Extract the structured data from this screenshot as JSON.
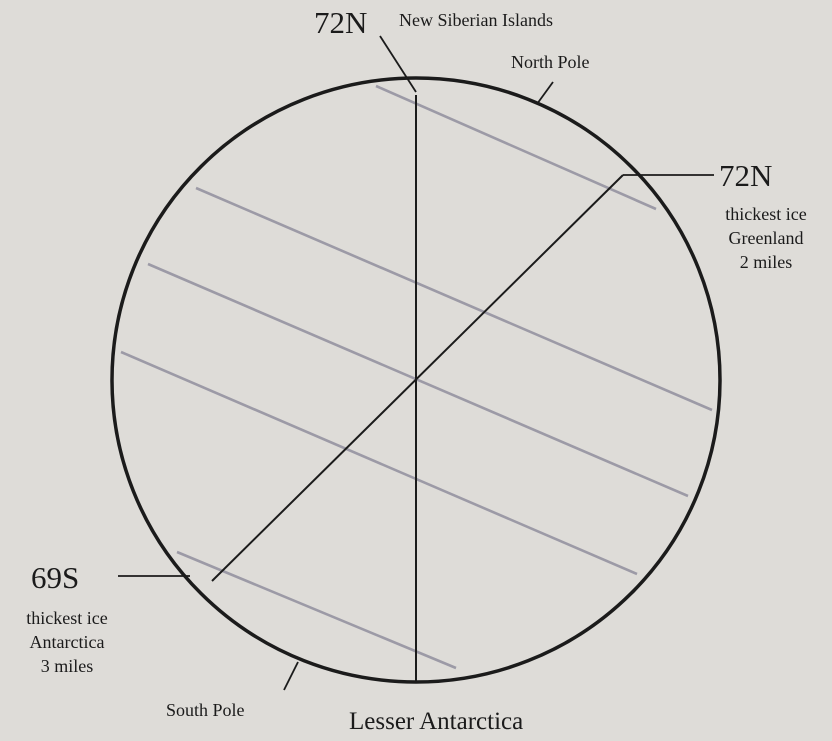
{
  "labels": {
    "top_lat": "72N",
    "top_place": "New Siberian Islands",
    "north_pole": "North Pole",
    "right_lat": "72N",
    "right_note": [
      "thickest ice",
      "Greenland",
      "2 miles"
    ],
    "left_lat": "69S",
    "left_note": [
      "thickest ice",
      "Antarctica",
      "3 miles"
    ],
    "south_pole": "South Pole",
    "bottom_place": "Lesser Antarctica"
  },
  "colors": {
    "background": "#dedcd8",
    "ink": "#1b1b1b",
    "stripes": "#9c9aa6"
  }
}
